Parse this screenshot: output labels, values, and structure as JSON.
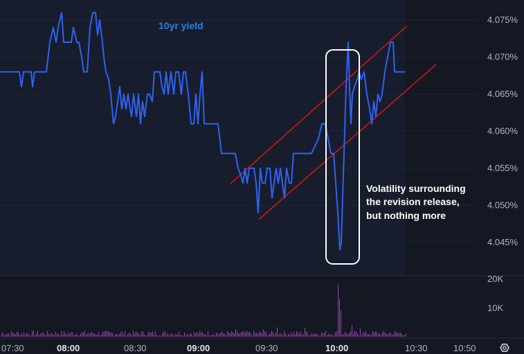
{
  "chart_data": {
    "type": "line",
    "title": "10yr yield",
    "series": [
      {
        "name": "10yr yield",
        "color": "#2f62f0",
        "points": [
          [
            0,
            4.068
          ],
          [
            28,
            4.068
          ],
          [
            31,
            4.066
          ],
          [
            34,
            4.068
          ],
          [
            45,
            4.068
          ],
          [
            47,
            4.066
          ],
          [
            50,
            4.068
          ],
          [
            67,
            4.068
          ],
          [
            72,
            4.072
          ],
          [
            77,
            4.074
          ],
          [
            81,
            4.072
          ],
          [
            84,
            4.074
          ],
          [
            89,
            4.076
          ],
          [
            92,
            4.072
          ],
          [
            103,
            4.072
          ],
          [
            106,
            4.074
          ],
          [
            111,
            4.072
          ],
          [
            114,
            4.072
          ],
          [
            118,
            4.07
          ],
          [
            121,
            4.068
          ],
          [
            126,
            4.068
          ],
          [
            130,
            4.074
          ],
          [
            134,
            4.076
          ],
          [
            138,
            4.076
          ],
          [
            141,
            4.073
          ],
          [
            144,
            4.075
          ],
          [
            148,
            4.072
          ],
          [
            150,
            4.07
          ],
          [
            153,
            4.068
          ],
          [
            157,
            4.067
          ],
          [
            160,
            4.065
          ],
          [
            164,
            4.061
          ],
          [
            167,
            4.062
          ],
          [
            170,
            4.064
          ],
          [
            173,
            4.066
          ],
          [
            176,
            4.063
          ],
          [
            179,
            4.065
          ],
          [
            182,
            4.063
          ],
          [
            185,
            4.065
          ],
          [
            188,
            4.063
          ],
          [
            190,
            4.062
          ],
          [
            193,
            4.065
          ],
          [
            197,
            4.062
          ],
          [
            200,
            4.065
          ],
          [
            203,
            4.061
          ],
          [
            206,
            4.064
          ],
          [
            209,
            4.062
          ],
          [
            213,
            4.065
          ],
          [
            216,
            4.065
          ],
          [
            220,
            4.064
          ],
          [
            223,
            4.068
          ],
          [
            228,
            4.068
          ],
          [
            231,
            4.068
          ],
          [
            234,
            4.066
          ],
          [
            237,
            4.065
          ],
          [
            240,
            4.068
          ],
          [
            243,
            4.065
          ],
          [
            247,
            4.068
          ],
          [
            251,
            4.065
          ],
          [
            254,
            4.068
          ],
          [
            258,
            4.068
          ],
          [
            262,
            4.065
          ],
          [
            265,
            4.068
          ],
          [
            268,
            4.068
          ],
          [
            272,
            4.065
          ],
          [
            276,
            4.061
          ],
          [
            280,
            4.061
          ],
          [
            283,
            4.065
          ],
          [
            286,
            4.061
          ],
          [
            289,
            4.065
          ],
          [
            292,
            4.068
          ],
          [
            295,
            4.061
          ],
          [
            299,
            4.061
          ],
          [
            305,
            4.061
          ],
          [
            310,
            4.061
          ],
          [
            315,
            4.061
          ],
          [
            320,
            4.057
          ],
          [
            325,
            4.057
          ],
          [
            340,
            4.057
          ],
          [
            344,
            4.055
          ],
          [
            348,
            4.054
          ],
          [
            351,
            4.053
          ],
          [
            354,
            4.055
          ],
          [
            357,
            4.053
          ],
          [
            360,
            4.055
          ],
          [
            364,
            4.055
          ],
          [
            367,
            4.055
          ],
          [
            370,
            4.053
          ],
          [
            373,
            4.049
          ],
          [
            376,
            4.055
          ],
          [
            379,
            4.053
          ],
          [
            383,
            4.053
          ],
          [
            386,
            4.055
          ],
          [
            390,
            4.055
          ],
          [
            393,
            4.051
          ],
          [
            396,
            4.053
          ],
          [
            399,
            4.055
          ],
          [
            402,
            4.053
          ],
          [
            405,
            4.055
          ],
          [
            408,
            4.053
          ],
          [
            411,
            4.051
          ],
          [
            414,
            4.055
          ],
          [
            418,
            4.053
          ],
          [
            421,
            4.053
          ],
          [
            424,
            4.057
          ],
          [
            435,
            4.057
          ],
          [
            450,
            4.057
          ],
          [
            460,
            4.059
          ],
          [
            465,
            4.061
          ],
          [
            470,
            4.061
          ],
          [
            474,
            4.059
          ],
          [
            478,
            4.057
          ],
          [
            482,
            4.057
          ],
          [
            485,
            4.053
          ],
          [
            488,
            4.049
          ],
          [
            491,
            4.044
          ],
          [
            493,
            4.045
          ],
          [
            496,
            4.054
          ],
          [
            498,
            4.06
          ],
          [
            500,
            4.066
          ],
          [
            502,
            4.07
          ],
          [
            503,
            4.072
          ],
          [
            505,
            4.066
          ],
          [
            507,
            4.061
          ],
          [
            509,
            4.065
          ],
          [
            512,
            4.066
          ],
          [
            516,
            4.067
          ],
          [
            519,
            4.068
          ],
          [
            522,
            4.067
          ],
          [
            526,
            4.068
          ],
          [
            530,
            4.065
          ],
          [
            534,
            4.063
          ],
          [
            537,
            4.061
          ],
          [
            540,
            4.064
          ],
          [
            543,
            4.062
          ],
          [
            546,
            4.065
          ],
          [
            549,
            4.064
          ],
          [
            552,
            4.065
          ],
          [
            556,
            4.068
          ],
          [
            560,
            4.07
          ],
          [
            564,
            4.072
          ],
          [
            568,
            4.072
          ],
          [
            570,
            4.068
          ],
          [
            585,
            4.068
          ]
        ]
      }
    ],
    "yaxis": {
      "ticks": [
        "4.045%",
        "4.050%",
        "4.055%",
        "4.060%",
        "4.065%",
        "4.070%",
        "4.075%"
      ],
      "tick_values": [
        4.045,
        4.05,
        4.055,
        4.06,
        4.065,
        4.07,
        4.075
      ],
      "ylim": [
        4.0405,
        4.0777
      ]
    },
    "xaxis": {
      "ticks": [
        {
          "label": "07:30",
          "bold": false
        },
        {
          "label": "08:00",
          "bold": true
        },
        {
          "label": "08:30",
          "bold": false
        },
        {
          "label": "09:00",
          "bold": true
        },
        {
          "label": "09:30",
          "bold": false
        },
        {
          "label": "10:00",
          "bold": true
        },
        {
          "label": "10:30",
          "bold": false
        },
        {
          "label": "10:50",
          "bold": false
        }
      ]
    },
    "volume": {
      "ticks": [
        "20K",
        "10K"
      ],
      "tick_values": [
        20000,
        10000
      ],
      "max": 21000,
      "color": "#b04ec8",
      "spikes": [
        [
          488,
          18000
        ],
        [
          490,
          13000
        ],
        [
          492,
          9000
        ],
        [
          495,
          7500
        ],
        [
          503,
          5500
        ],
        [
          508,
          4000
        ],
        [
          400,
          3200
        ],
        [
          475,
          3000
        ],
        [
          380,
          2500
        ],
        [
          340,
          2600
        ],
        [
          440,
          3100
        ],
        [
          520,
          2800
        ]
      ]
    },
    "trend_lines": [
      {
        "from": [
          333,
          4.0529
        ],
        "to": [
          588,
          4.0742
        ],
        "color": "#d11616"
      },
      {
        "from": [
          374,
          4.0481
        ],
        "to": [
          630,
          4.069
        ],
        "color": "#d11616"
      }
    ],
    "annotation": {
      "lines": [
        "Volatility surrounding",
        "the revision release,",
        "but nothing more"
      ]
    }
  },
  "icons": {
    "settings": "settings-icon"
  }
}
